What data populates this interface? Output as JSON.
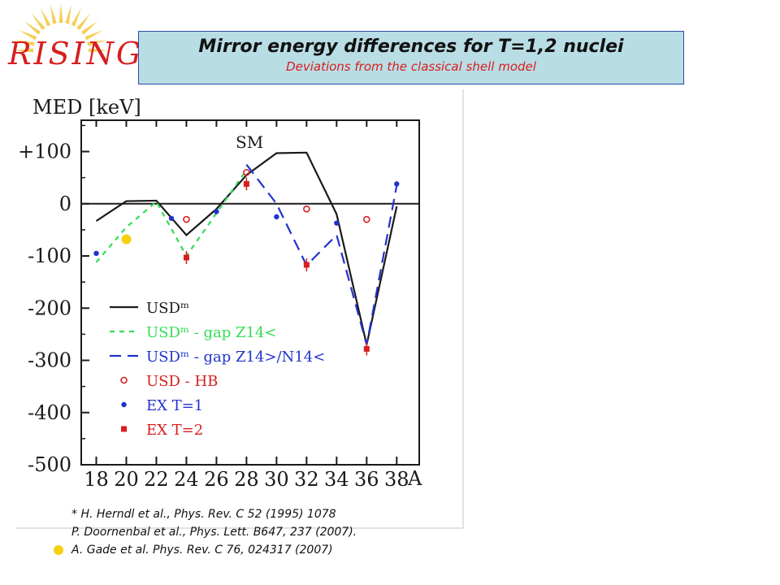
{
  "header": {
    "logo_text": "RISING",
    "title": "Mirror energy differences for T=1,2 nuclei",
    "subtitle": "Deviations from the classical shell model"
  },
  "chart_data": {
    "type": "line",
    "ylabel": "MED [keV]",
    "xlabel": "A",
    "annotation": "SM",
    "xlim": [
      17,
      39.5
    ],
    "ylim": [
      -500,
      160
    ],
    "x_ticks": [
      18,
      20,
      22,
      24,
      26,
      28,
      30,
      32,
      34,
      36,
      38
    ],
    "y_ticks": [
      {
        "value": 100,
        "label": "+100"
      },
      {
        "value": 0,
        "label": "0"
      },
      {
        "value": -100,
        "label": "-100"
      },
      {
        "value": -200,
        "label": "-200"
      },
      {
        "value": -300,
        "label": "-300"
      },
      {
        "value": -400,
        "label": "-400"
      },
      {
        "value": -500,
        "label": "-500"
      }
    ],
    "series": [
      {
        "name": "USDᵐ",
        "style": "solid",
        "color": "#1a1a1a",
        "x": [
          18,
          20,
          22,
          24,
          26,
          28,
          30,
          32,
          34,
          36,
          38
        ],
        "y": [
          -33,
          5,
          6,
          -60,
          -10,
          55,
          97,
          98,
          -20,
          -270,
          -5
        ]
      },
      {
        "name": "USDᵐ - gap Z14<",
        "style": "dashed-green",
        "color": "#33dd55",
        "x": [
          18,
          20,
          22,
          24,
          26,
          28
        ],
        "y": [
          -112,
          -45,
          4,
          -100,
          -18,
          65
        ]
      },
      {
        "name": "USDᵐ - gap Z14>/N14<",
        "style": "dashed-blue",
        "color": "#2233cc",
        "x": [
          28,
          30,
          32,
          34,
          36,
          38
        ],
        "y": [
          75,
          0,
          -118,
          -60,
          -270,
          35
        ]
      },
      {
        "name": "USD - HB",
        "style": "open-circle",
        "color": "#d81e1e",
        "x": [
          24,
          28,
          32,
          36
        ],
        "y": [
          -30,
          60,
          -10,
          -30
        ]
      },
      {
        "name": "EX T=1",
        "style": "dot",
        "color": "#2233cc",
        "x": [
          18,
          23,
          26,
          30,
          34,
          38
        ],
        "y": [
          -95,
          -28,
          -15,
          -25,
          -37,
          38
        ]
      },
      {
        "name": "EX T=2",
        "style": "square",
        "color": "#d81e1e",
        "x": [
          24,
          28,
          32,
          36
        ],
        "y": [
          -103,
          38,
          -117,
          -278
        ]
      }
    ],
    "extra_marker": {
      "x": 20,
      "y": -68,
      "color": "#f5d010"
    }
  },
  "references": [
    "* H. Herndl et al.,  Phys. Rev. C 52 (1995) 1078",
    "P. Doornenbal et al., Phys. Lett. B647, 237 (2007).",
    "A. Gade et al. Phys. Rev. C 76, 024317 (2007)"
  ]
}
